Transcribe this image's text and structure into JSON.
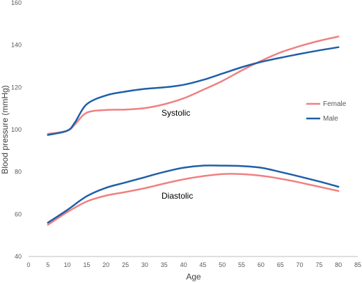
{
  "chart_data": {
    "type": "line",
    "xlabel": "Age",
    "ylabel": "Blood pressure (mmHg)",
    "xlim": [
      0,
      85
    ],
    "ylim": [
      40,
      160
    ],
    "x_ticks": [
      0,
      5,
      10,
      15,
      20,
      25,
      30,
      35,
      40,
      45,
      50,
      55,
      60,
      65,
      70,
      75,
      80,
      85
    ],
    "y_ticks": [
      40,
      60,
      80,
      100,
      120,
      140,
      160
    ],
    "grid": false,
    "legend_placement": "right",
    "legend": [
      {
        "name": "Female",
        "color": "#F08080"
      },
      {
        "name": "Male",
        "color": "#1F5FA8"
      }
    ],
    "annotations": [
      "Systolic",
      "Diastolic"
    ],
    "series": [
      {
        "name": "Female",
        "group": "Systolic",
        "color": "#F08080",
        "x": [
          5,
          10,
          12,
          15,
          20,
          25,
          30,
          35,
          40,
          45,
          50,
          55,
          60,
          65,
          70,
          75,
          80
        ],
        "y": [
          98,
          99.5,
          102.5,
          108,
          109.3,
          109.5,
          110.2,
          112,
          114.8,
          118.8,
          123,
          128,
          132.5,
          136.5,
          139.5,
          142,
          144
        ]
      },
      {
        "name": "Male",
        "group": "Systolic",
        "color": "#1F5FA8",
        "x": [
          5,
          10,
          12,
          15,
          20,
          25,
          30,
          35,
          40,
          45,
          50,
          55,
          60,
          65,
          70,
          75,
          80
        ],
        "y": [
          97.5,
          99.5,
          103.5,
          112,
          116.2,
          118,
          119.3,
          120,
          121.2,
          123.5,
          126.5,
          129.5,
          132,
          134,
          135.8,
          137.5,
          139
        ]
      },
      {
        "name": "Female",
        "group": "Diastolic",
        "color": "#F08080",
        "x": [
          5,
          10,
          15,
          20,
          25,
          30,
          35,
          40,
          45,
          50,
          55,
          60,
          65,
          70,
          75,
          80
        ],
        "y": [
          55,
          61,
          66,
          68.8,
          70.5,
          72.3,
          74.5,
          76.5,
          78,
          79,
          79,
          78.2,
          76.8,
          75,
          73,
          71
        ]
      },
      {
        "name": "Male",
        "group": "Diastolic",
        "color": "#1F5FA8",
        "x": [
          5,
          10,
          15,
          20,
          25,
          30,
          35,
          40,
          45,
          50,
          55,
          60,
          65,
          70,
          75,
          80
        ],
        "y": [
          56,
          62,
          68.5,
          72.5,
          75,
          77.5,
          80,
          82,
          83,
          83,
          82.8,
          82,
          80,
          77.8,
          75.5,
          73
        ]
      }
    ]
  }
}
